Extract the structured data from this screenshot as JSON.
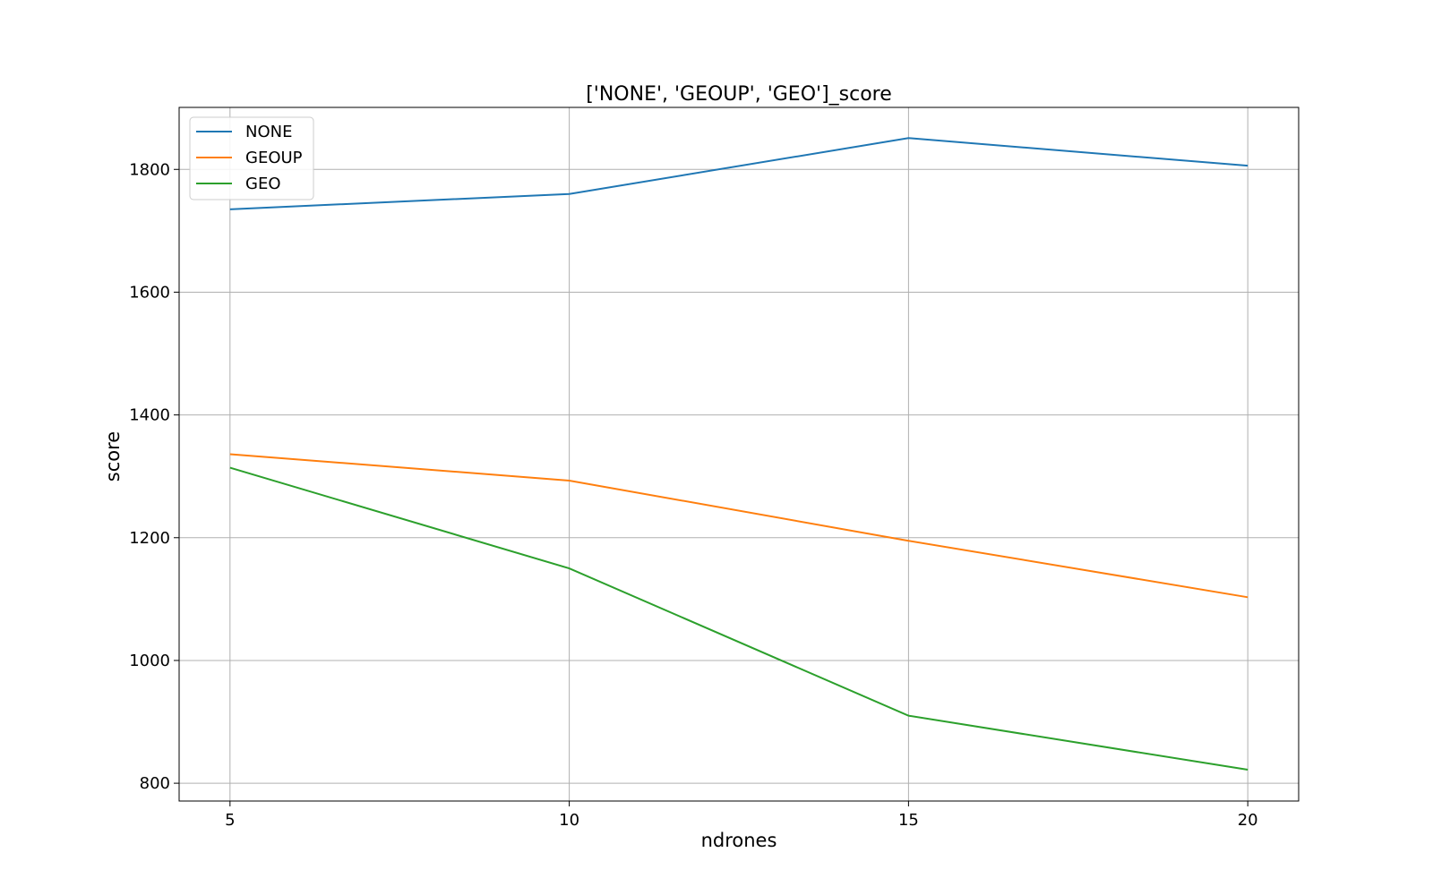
{
  "chart_data": {
    "type": "line",
    "title": "['NONE', 'GEOUP', 'GEO']_score",
    "xlabel": "ndrones",
    "ylabel": "score",
    "x": [
      5,
      10,
      15,
      20
    ],
    "xticks": [
      "5",
      "10",
      "15",
      "20"
    ],
    "yticks": [
      "800",
      "1000",
      "1200",
      "1400",
      "1600",
      "1800"
    ],
    "xlim": [
      4.25,
      20.75
    ],
    "ylim": [
      771,
      1901
    ],
    "grid": true,
    "legend_position": "upper-left",
    "series": [
      {
        "name": "NONE",
        "color": "#1f77b4",
        "values": [
          1735,
          1760,
          1851,
          1806
        ]
      },
      {
        "name": "GEOUP",
        "color": "#ff7f0e",
        "values": [
          1336,
          1293,
          1195,
          1103
        ]
      },
      {
        "name": "GEO",
        "color": "#2ca02c",
        "values": [
          1314,
          1150,
          910,
          822
        ]
      }
    ]
  }
}
